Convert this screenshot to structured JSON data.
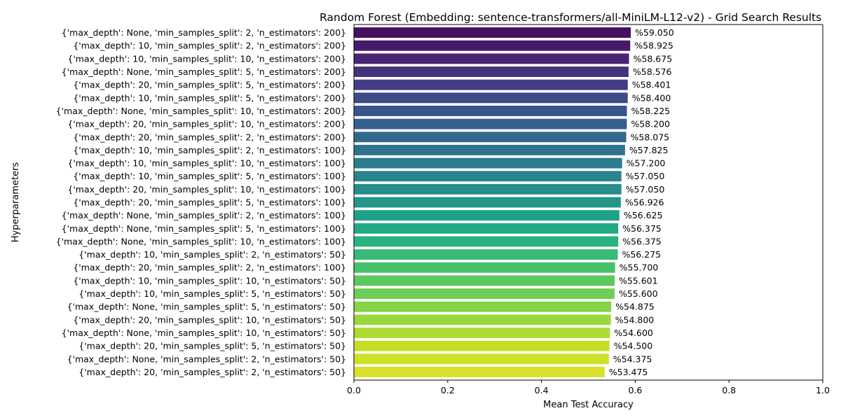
{
  "chart_data": {
    "type": "bar",
    "orientation": "horizontal",
    "title": "Random Forest (Embedding: sentence-transformers/all-MiniLM-L12-v2) - Grid Search Results",
    "xlabel": "Mean Test Accuracy",
    "ylabel": "Hyperparameters",
    "xlim": [
      0,
      1
    ],
    "xticks": [
      "0.0",
      "0.2",
      "0.4",
      "0.6",
      "0.8",
      "1.0"
    ],
    "grid": false,
    "legend": "none",
    "colormap": "viridis",
    "categories": [
      "{'max_depth': None, 'min_samples_split': 2, 'n_estimators': 200}",
      "{'max_depth': 10, 'min_samples_split': 2, 'n_estimators': 200}",
      "{'max_depth': 10, 'min_samples_split': 10, 'n_estimators': 200}",
      "{'max_depth': None, 'min_samples_split': 5, 'n_estimators': 200}",
      "{'max_depth': 20, 'min_samples_split': 5, 'n_estimators': 200}",
      "{'max_depth': 10, 'min_samples_split': 5, 'n_estimators': 200}",
      "{'max_depth': None, 'min_samples_split': 10, 'n_estimators': 200}",
      "{'max_depth': 20, 'min_samples_split': 10, 'n_estimators': 200}",
      "{'max_depth': 20, 'min_samples_split': 2, 'n_estimators': 200}",
      "{'max_depth': 10, 'min_samples_split': 2, 'n_estimators': 100}",
      "{'max_depth': 10, 'min_samples_split': 10, 'n_estimators': 100}",
      "{'max_depth': 10, 'min_samples_split': 5, 'n_estimators': 100}",
      "{'max_depth': 20, 'min_samples_split': 10, 'n_estimators': 100}",
      "{'max_depth': 20, 'min_samples_split': 5, 'n_estimators': 100}",
      "{'max_depth': None, 'min_samples_split': 2, 'n_estimators': 100}",
      "{'max_depth': None, 'min_samples_split': 5, 'n_estimators': 100}",
      "{'max_depth': None, 'min_samples_split': 10, 'n_estimators': 100}",
      "{'max_depth': 10, 'min_samples_split': 2, 'n_estimators': 50}",
      "{'max_depth': 20, 'min_samples_split': 2, 'n_estimators': 100}",
      "{'max_depth': 10, 'min_samples_split': 10, 'n_estimators': 50}",
      "{'max_depth': 10, 'min_samples_split': 5, 'n_estimators': 50}",
      "{'max_depth': None, 'min_samples_split': 5, 'n_estimators': 50}",
      "{'max_depth': 20, 'min_samples_split': 10, 'n_estimators': 50}",
      "{'max_depth': None, 'min_samples_split': 10, 'n_estimators': 50}",
      "{'max_depth': 20, 'min_samples_split': 5, 'n_estimators': 50}",
      "{'max_depth': None, 'min_samples_split': 2, 'n_estimators': 50}",
      "{'max_depth': 20, 'min_samples_split': 2, 'n_estimators': 50}"
    ],
    "values": [
      0.5905,
      0.58925,
      0.58675,
      0.58576,
      0.58401,
      0.584,
      0.58225,
      0.582,
      0.58075,
      0.57825,
      0.572,
      0.5705,
      0.5705,
      0.56926,
      0.56625,
      0.56375,
      0.56375,
      0.56275,
      0.557,
      0.55601,
      0.556,
      0.54875,
      0.548,
      0.546,
      0.545,
      0.54375,
      0.53475
    ],
    "data_labels": [
      "%59.050",
      "%58.925",
      "%58.675",
      "%58.576",
      "%58.401",
      "%58.400",
      "%58.225",
      "%58.200",
      "%58.075",
      "%57.825",
      "%57.200",
      "%57.050",
      "%57.050",
      "%56.926",
      "%56.625",
      "%56.375",
      "%56.375",
      "%56.275",
      "%55.700",
      "%55.601",
      "%55.600",
      "%54.875",
      "%54.800",
      "%54.600",
      "%54.500",
      "%54.375",
      "%53.475"
    ],
    "colors": [
      "#46105e",
      "#47196b",
      "#482575",
      "#45327d",
      "#423d84",
      "#3e4a89",
      "#39548c",
      "#355f8d",
      "#31698e",
      "#2e728e",
      "#2b7c8e",
      "#29848e",
      "#258d8c",
      "#23968a",
      "#1fa188",
      "#21a885",
      "#29b27d",
      "#37b977",
      "#47c26b",
      "#5cc95f",
      "#6fce56",
      "#84d447",
      "#9ad93c",
      "#aedc30",
      "#c3df25",
      "#cfe029",
      "#d9e12b"
    ]
  }
}
